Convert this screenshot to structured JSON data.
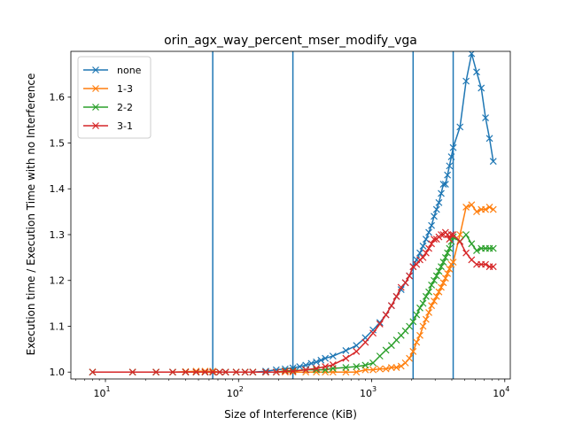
{
  "chart_data": {
    "type": "line",
    "title": "orin_agx_way_percent_mser_modify_vga",
    "xlabel": "Size of Interference (KiB)",
    "ylabel": "Execution time / Execution Time with no Interference",
    "xscale": "log",
    "xlim": [
      5.5,
      11000
    ],
    "ylim": [
      0.985,
      1.7
    ],
    "xticks": [
      {
        "value": 10,
        "base": "10",
        "exp": "1"
      },
      {
        "value": 100,
        "base": "10",
        "exp": "2"
      },
      {
        "value": 1000,
        "base": "10",
        "exp": "3"
      },
      {
        "value": 10000,
        "base": "10",
        "exp": "4"
      }
    ],
    "yticks": [
      "1.0",
      "1.1",
      "1.2",
      "1.3",
      "1.4",
      "1.5",
      "1.6"
    ],
    "grid": false,
    "legend_position": "top-left",
    "vlines": [
      64,
      256,
      2048,
      4096
    ],
    "vline_color": "#1f77b4",
    "series": [
      {
        "name": "none",
        "color": "#1f77b4",
        "x": [
          8,
          16,
          24,
          32,
          40,
          48,
          56,
          64,
          72,
          80,
          96,
          112,
          128,
          160,
          192,
          224,
          256,
          288,
          320,
          352,
          384,
          416,
          448,
          512,
          640,
          768,
          896,
          1024,
          1152,
          1280,
          1408,
          1536,
          1664,
          1792,
          1920,
          2048,
          2176,
          2304,
          2432,
          2560,
          2688,
          2816,
          2944,
          3072,
          3200,
          3328,
          3456,
          3584,
          3712,
          3840,
          3968,
          4096,
          4608,
          5120,
          5632,
          6144,
          6656,
          7168,
          7680,
          8192
        ],
        "y": [
          1.0,
          1.0,
          1.0,
          1.0,
          1.0,
          1.0,
          1.0,
          1.0,
          1.0,
          1.0,
          1.0,
          1.0,
          1.0,
          1.002,
          1.005,
          1.007,
          1.009,
          1.012,
          1.015,
          1.019,
          1.022,
          1.026,
          1.03,
          1.035,
          1.047,
          1.058,
          1.075,
          1.092,
          1.108,
          1.125,
          1.145,
          1.165,
          1.18,
          1.195,
          1.21,
          1.23,
          1.245,
          1.26,
          1.275,
          1.29,
          1.305,
          1.32,
          1.34,
          1.355,
          1.37,
          1.39,
          1.41,
          1.41,
          1.43,
          1.45,
          1.47,
          1.49,
          1.535,
          1.635,
          1.695,
          1.655,
          1.62,
          1.555,
          1.51,
          1.46
        ]
      },
      {
        "name": "1-3",
        "color": "#ff7f0e",
        "x": [
          8,
          16,
          24,
          32,
          40,
          48,
          56,
          64,
          72,
          80,
          96,
          112,
          128,
          160,
          192,
          224,
          256,
          320,
          384,
          448,
          512,
          640,
          768,
          896,
          1024,
          1152,
          1280,
          1408,
          1536,
          1664,
          1792,
          1920,
          2048,
          2176,
          2304,
          2432,
          2560,
          2688,
          2816,
          2944,
          3072,
          3200,
          3328,
          3456,
          3584,
          3712,
          3840,
          3968,
          4096,
          4608,
          5120,
          5632,
          6144,
          6656,
          7168,
          7680,
          8192
        ],
        "y": [
          1.0,
          1.0,
          1.0,
          1.0,
          1.001,
          1.002,
          1.002,
          1.002,
          1.0,
          1.0,
          1.0,
          1.0,
          1.0,
          1.0,
          1.0,
          1.0,
          1.0,
          1.0,
          1.0,
          1.0,
          1.0,
          1.0,
          1.0,
          1.005,
          1.005,
          1.007,
          1.007,
          1.01,
          1.01,
          1.013,
          1.02,
          1.03,
          1.045,
          1.065,
          1.08,
          1.1,
          1.115,
          1.13,
          1.145,
          1.155,
          1.165,
          1.175,
          1.185,
          1.195,
          1.205,
          1.215,
          1.225,
          1.235,
          1.24,
          1.3,
          1.36,
          1.365,
          1.35,
          1.355,
          1.355,
          1.36,
          1.355
        ]
      },
      {
        "name": "2-2",
        "color": "#2ca02c",
        "x": [
          8,
          16,
          24,
          32,
          40,
          48,
          56,
          64,
          72,
          80,
          96,
          112,
          128,
          160,
          192,
          224,
          256,
          320,
          384,
          448,
          512,
          640,
          768,
          896,
          1024,
          1152,
          1280,
          1408,
          1536,
          1664,
          1792,
          1920,
          2048,
          2176,
          2304,
          2432,
          2560,
          2688,
          2816,
          2944,
          3072,
          3200,
          3328,
          3456,
          3584,
          3712,
          3840,
          3968,
          4096,
          4608,
          5120,
          5632,
          6144,
          6656,
          7168,
          7680,
          8192
        ],
        "y": [
          1.0,
          1.0,
          1.0,
          1.0,
          1.0,
          1.0,
          1.0,
          1.0,
          1.0,
          1.0,
          1.0,
          1.0,
          1.0,
          1.0,
          1.0,
          1.003,
          1.003,
          1.005,
          1.005,
          1.005,
          1.008,
          1.01,
          1.012,
          1.015,
          1.02,
          1.035,
          1.048,
          1.058,
          1.07,
          1.08,
          1.09,
          1.1,
          1.11,
          1.125,
          1.14,
          1.15,
          1.165,
          1.175,
          1.19,
          1.2,
          1.21,
          1.22,
          1.23,
          1.24,
          1.25,
          1.26,
          1.27,
          1.285,
          1.295,
          1.285,
          1.3,
          1.28,
          1.265,
          1.27,
          1.27,
          1.27,
          1.27
        ]
      },
      {
        "name": "3-1",
        "color": "#d62728",
        "x": [
          8,
          16,
          24,
          32,
          40,
          48,
          56,
          64,
          72,
          80,
          96,
          112,
          128,
          160,
          192,
          224,
          256,
          320,
          384,
          448,
          512,
          640,
          768,
          896,
          1024,
          1152,
          1280,
          1408,
          1536,
          1664,
          1792,
          1920,
          2048,
          2176,
          2304,
          2432,
          2560,
          2688,
          2816,
          2944,
          3072,
          3200,
          3328,
          3456,
          3584,
          3712,
          3840,
          3968,
          4096,
          4608,
          5120,
          5632,
          6144,
          6656,
          7168,
          7680,
          8192
        ],
        "y": [
          1.0,
          1.0,
          1.0,
          1.0,
          1.0,
          1.0,
          1.0,
          1.0,
          1.0,
          1.0,
          1.0,
          1.0,
          1.0,
          1.0,
          1.0,
          1.002,
          1.002,
          1.005,
          1.008,
          1.012,
          1.016,
          1.03,
          1.045,
          1.065,
          1.085,
          1.105,
          1.125,
          1.145,
          1.165,
          1.185,
          1.195,
          1.21,
          1.23,
          1.235,
          1.245,
          1.25,
          1.26,
          1.27,
          1.28,
          1.29,
          1.29,
          1.295,
          1.3,
          1.3,
          1.305,
          1.3,
          1.29,
          1.3,
          1.3,
          1.285,
          1.26,
          1.245,
          1.235,
          1.235,
          1.235,
          1.23,
          1.23
        ]
      }
    ]
  }
}
